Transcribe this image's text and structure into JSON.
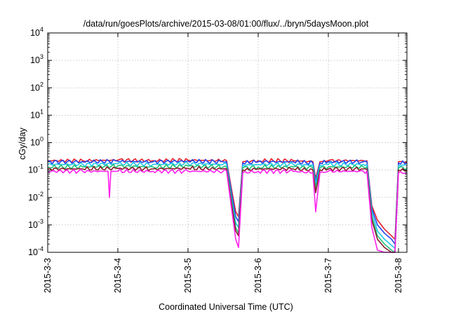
{
  "chart_data": {
    "type": "line",
    "title": "/data/run/goesPlots/archive/2015-03-08/01:00/flux/../bryn/5daysMoon.plot",
    "xlabel": "Coordinated Universal Time (UTC)",
    "ylabel": "cGy/day",
    "x_tick_labels": [
      "2015-3-3",
      "2015-3-4",
      "2015-3-5",
      "2015-3-6",
      "2015-3-7",
      "2015-3-8"
    ],
    "x_unit": "days since 2015-3-3 00:00 UTC",
    "xlim": [
      0,
      5.12
    ],
    "y_scale": "log",
    "ylim": [
      0.0001,
      10000
    ],
    "y_tick_labels": [
      {
        "base": "10",
        "exp": "-4"
      },
      {
        "base": "10",
        "exp": "-3"
      },
      {
        "base": "10",
        "exp": "-2"
      },
      {
        "base": "10",
        "exp": "-1"
      },
      {
        "base": "10",
        "exp": "0"
      },
      {
        "base": "10",
        "exp": "1"
      },
      {
        "base": "10",
        "exp": "2"
      },
      {
        "base": "10",
        "exp": "3"
      },
      {
        "base": "10",
        "exp": "4"
      }
    ],
    "y_tick_values": [
      0.0001,
      0.001,
      0.01,
      0.1,
      1,
      10,
      100,
      1000,
      10000
    ],
    "grid": true,
    "legend": "none",
    "series": [
      {
        "color": "#e8202a",
        "x": [
          0,
          0.5,
          1.0,
          1.5,
          2.0,
          2.5,
          2.55,
          2.62,
          2.68,
          2.72,
          2.78,
          3.0,
          3.5,
          3.78,
          3.82,
          3.88,
          4.0,
          4.5,
          4.55,
          4.62,
          4.7,
          4.8,
          4.9,
          4.95,
          5.0,
          5.12
        ],
        "y": [
          0.22,
          0.22,
          0.23,
          0.22,
          0.23,
          0.22,
          0.22,
          0.02,
          0.003,
          0.002,
          0.2,
          0.22,
          0.22,
          0.2,
          0.05,
          0.2,
          0.22,
          0.22,
          0.22,
          0.005,
          0.0015,
          0.0007,
          0.0004,
          0.0003,
          0.2,
          0.2
        ]
      },
      {
        "color": "#2244ee",
        "x": [
          0,
          0.5,
          1.0,
          1.5,
          2.0,
          2.5,
          2.55,
          2.62,
          2.68,
          2.72,
          2.78,
          3.0,
          3.5,
          3.78,
          3.82,
          3.88,
          4.0,
          4.5,
          4.55,
          4.62,
          4.7,
          4.8,
          4.9,
          4.95,
          5.0,
          5.12
        ],
        "y": [
          0.2,
          0.2,
          0.21,
          0.2,
          0.21,
          0.2,
          0.2,
          0.015,
          0.002,
          0.0013,
          0.18,
          0.2,
          0.2,
          0.18,
          0.04,
          0.18,
          0.2,
          0.2,
          0.2,
          0.004,
          0.001,
          0.0005,
          0.0003,
          0.0002,
          0.18,
          0.18
        ]
      },
      {
        "color": "#22c7e8",
        "x": [
          0,
          0.5,
          1.0,
          1.5,
          2.0,
          2.5,
          2.55,
          2.62,
          2.68,
          2.72,
          2.78,
          3.0,
          3.5,
          3.78,
          3.82,
          3.88,
          4.0,
          4.5,
          4.55,
          4.62,
          4.7,
          4.8,
          4.9,
          4.95,
          5.0,
          5.12
        ],
        "y": [
          0.16,
          0.16,
          0.17,
          0.16,
          0.17,
          0.16,
          0.16,
          0.01,
          0.0012,
          0.0008,
          0.15,
          0.16,
          0.16,
          0.15,
          0.03,
          0.15,
          0.16,
          0.16,
          0.16,
          0.003,
          0.0006,
          0.0003,
          0.00018,
          0.00014,
          0.15,
          0.15
        ]
      },
      {
        "color": "#22c27a",
        "x": [
          0,
          0.5,
          1.0,
          1.5,
          2.0,
          2.5,
          2.55,
          2.62,
          2.68,
          2.72,
          2.78,
          3.0,
          3.5,
          3.78,
          3.82,
          3.88,
          4.0,
          4.5,
          4.55,
          4.62,
          4.7,
          4.8,
          4.9,
          4.95,
          5.0,
          5.12
        ],
        "y": [
          0.13,
          0.13,
          0.14,
          0.13,
          0.14,
          0.13,
          0.13,
          0.008,
          0.0008,
          0.0005,
          0.12,
          0.13,
          0.13,
          0.12,
          0.02,
          0.12,
          0.13,
          0.13,
          0.13,
          0.002,
          0.0004,
          0.0002,
          0.00012,
          0.0001,
          0.12,
          0.12
        ]
      },
      {
        "color": "#8b1c2a",
        "x": [
          0,
          0.5,
          1.0,
          1.5,
          2.0,
          2.5,
          2.55,
          2.62,
          2.68,
          2.72,
          2.78,
          3.0,
          3.5,
          3.78,
          3.82,
          3.88,
          4.0,
          4.5,
          4.55,
          4.62,
          4.7,
          4.8,
          4.9,
          4.95,
          5.0,
          5.12
        ],
        "y": [
          0.11,
          0.11,
          0.115,
          0.11,
          0.115,
          0.11,
          0.11,
          0.006,
          0.0006,
          0.0004,
          0.1,
          0.11,
          0.11,
          0.1,
          0.015,
          0.1,
          0.11,
          0.11,
          0.11,
          0.0015,
          0.0003,
          0.00015,
          0.0001,
          0.0001,
          0.1,
          0.1
        ]
      },
      {
        "color": "#ff22ee",
        "x": [
          0,
          0.5,
          0.86,
          0.88,
          0.9,
          1.0,
          1.5,
          2.0,
          2.5,
          2.55,
          2.62,
          2.68,
          2.72,
          2.78,
          3.0,
          3.5,
          3.78,
          3.82,
          3.88,
          4.0,
          4.5,
          4.55,
          4.62,
          4.7,
          4.8,
          4.9,
          4.95,
          5.0,
          5.12
        ],
        "y": [
          0.09,
          0.09,
          0.09,
          0.01,
          0.09,
          0.09,
          0.09,
          0.09,
          0.09,
          0.09,
          0.004,
          0.0003,
          0.00015,
          0.08,
          0.09,
          0.09,
          0.08,
          0.003,
          0.08,
          0.09,
          0.09,
          0.09,
          0.0008,
          0.00012,
          0.0001,
          0.0001,
          0.0001,
          0.08,
          0.08
        ]
      }
    ]
  }
}
